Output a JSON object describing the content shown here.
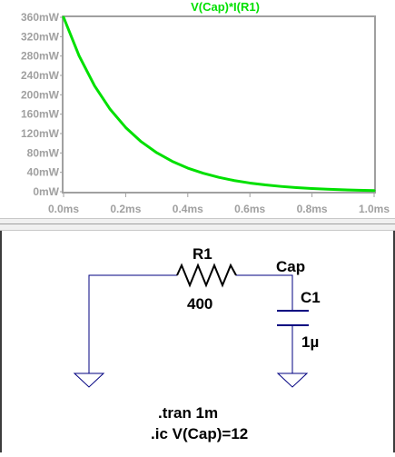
{
  "waveform": {
    "trace_title": "V(Cap)*I(R1)",
    "trace_color": "#00e000",
    "axis_color": "#a0a0a0",
    "chart_data": {
      "type": "line",
      "title": "V(Cap)*I(R1)",
      "xlabel": "",
      "ylabel": "",
      "x_ticks": [
        "0.0ms",
        "0.2ms",
        "0.4ms",
        "0.6ms",
        "0.8ms",
        "1.0ms"
      ],
      "y_ticks": [
        "0mW",
        "40mW",
        "80mW",
        "120mW",
        "160mW",
        "200mW",
        "240mW",
        "280mW",
        "320mW",
        "360mW"
      ],
      "xlim": [
        0,
        1.0
      ],
      "ylim": [
        0,
        360
      ],
      "grid": false,
      "series": [
        {
          "name": "V(Cap)*I(R1)",
          "x": [
            0.0,
            0.05,
            0.1,
            0.15,
            0.2,
            0.25,
            0.3,
            0.35,
            0.4,
            0.45,
            0.5,
            0.55,
            0.6,
            0.65,
            0.7,
            0.75,
            0.8,
            0.85,
            0.9,
            0.95,
            1.0
          ],
          "values": [
            360,
            280.4,
            218.4,
            170.1,
            132.5,
            103.2,
            80.4,
            62.6,
            48.7,
            38.0,
            29.6,
            23.0,
            17.9,
            14.0,
            10.9,
            8.5,
            6.6,
            5.1,
            4.0,
            3.1,
            2.4
          ]
        }
      ]
    }
  },
  "schematic": {
    "wire_color": "#000080",
    "text_color": "#000000",
    "resistor": {
      "ref": "R1",
      "value": "400"
    },
    "capacitor": {
      "ref": "C1",
      "value": "1µ"
    },
    "net_label": "Cap",
    "directives": [
      ".tran 1m",
      ".ic V(Cap)=12"
    ]
  }
}
